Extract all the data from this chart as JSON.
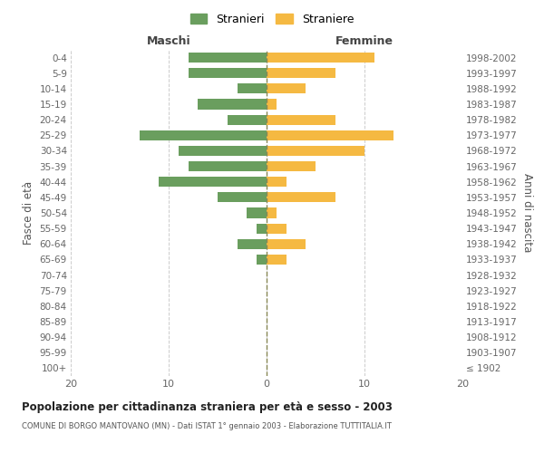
{
  "age_groups": [
    "100+",
    "95-99",
    "90-94",
    "85-89",
    "80-84",
    "75-79",
    "70-74",
    "65-69",
    "60-64",
    "55-59",
    "50-54",
    "45-49",
    "40-44",
    "35-39",
    "30-34",
    "25-29",
    "20-24",
    "15-19",
    "10-14",
    "5-9",
    "0-4"
  ],
  "birth_years": [
    "≤ 1902",
    "1903-1907",
    "1908-1912",
    "1913-1917",
    "1918-1922",
    "1923-1927",
    "1928-1932",
    "1933-1937",
    "1938-1942",
    "1943-1947",
    "1948-1952",
    "1953-1957",
    "1958-1962",
    "1963-1967",
    "1968-1972",
    "1973-1977",
    "1978-1982",
    "1983-1987",
    "1988-1992",
    "1993-1997",
    "1998-2002"
  ],
  "maschi": [
    0,
    0,
    0,
    0,
    0,
    0,
    0,
    1,
    3,
    1,
    2,
    5,
    11,
    8,
    9,
    13,
    4,
    7,
    3,
    8,
    8
  ],
  "femmine": [
    0,
    0,
    0,
    0,
    0,
    0,
    0,
    2,
    4,
    2,
    1,
    7,
    2,
    5,
    10,
    13,
    7,
    1,
    4,
    7,
    11
  ],
  "color_maschi": "#6a9e5e",
  "color_femmine": "#f5b942",
  "title": "Popolazione per cittadinanza straniera per età e sesso - 2003",
  "subtitle": "COMUNE DI BORGO MANTOVANO (MN) - Dati ISTAT 1° gennaio 2003 - Elaborazione TUTTITALIA.IT",
  "legend_maschi": "Stranieri",
  "legend_femmine": "Straniere",
  "header_left": "Maschi",
  "header_right": "Femmine",
  "ylabel_left": "Fasce di età",
  "ylabel_right": "Anni di nascita",
  "xlim": 20,
  "background_color": "#ffffff",
  "grid_color": "#cccccc"
}
